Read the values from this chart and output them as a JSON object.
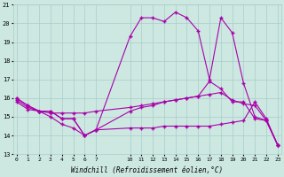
{
  "xlabel": "Windchill (Refroidissement éolien,°C)",
  "bg_color": "#cce8e0",
  "line_color": "#aa00aa",
  "hours": [
    0,
    1,
    2,
    3,
    4,
    5,
    6,
    7,
    10,
    11,
    12,
    13,
    14,
    15,
    16,
    17,
    18,
    19,
    20,
    21,
    22,
    23
  ],
  "series1": [
    16.0,
    15.6,
    15.3,
    15.3,
    14.9,
    14.9,
    14.0,
    14.3,
    15.3,
    15.5,
    15.6,
    15.8,
    15.9,
    16.0,
    16.1,
    16.9,
    16.5,
    15.8,
    15.8,
    14.9,
    14.8,
    13.5
  ],
  "series2": [
    16.0,
    15.6,
    15.3,
    15.3,
    14.9,
    14.9,
    14.0,
    14.3,
    19.3,
    20.3,
    20.3,
    20.1,
    20.6,
    20.3,
    19.6,
    17.0,
    20.3,
    19.5,
    16.8,
    15.0,
    14.8,
    13.5
  ],
  "series3": [
    15.9,
    15.5,
    15.3,
    15.2,
    15.2,
    15.2,
    15.2,
    15.3,
    15.5,
    15.6,
    15.7,
    15.8,
    15.9,
    16.0,
    16.1,
    16.2,
    16.3,
    15.9,
    15.7,
    15.6,
    14.8,
    13.5
  ],
  "series4": [
    15.8,
    15.4,
    15.3,
    15.0,
    14.6,
    14.4,
    14.0,
    14.3,
    14.4,
    14.4,
    14.4,
    14.5,
    14.5,
    14.5,
    14.5,
    14.5,
    14.6,
    14.7,
    14.8,
    15.8,
    14.9,
    13.5
  ],
  "ylim": [
    13,
    21
  ],
  "yticks": [
    13,
    14,
    15,
    16,
    17,
    18,
    19,
    20,
    21
  ],
  "xticks": [
    0,
    1,
    2,
    3,
    4,
    5,
    6,
    7,
    10,
    11,
    12,
    13,
    14,
    15,
    16,
    17,
    18,
    19,
    20,
    21,
    22,
    23
  ],
  "xlim": [
    -0.3,
    23.3
  ],
  "grid_color": "#aacccc",
  "marker": "+"
}
